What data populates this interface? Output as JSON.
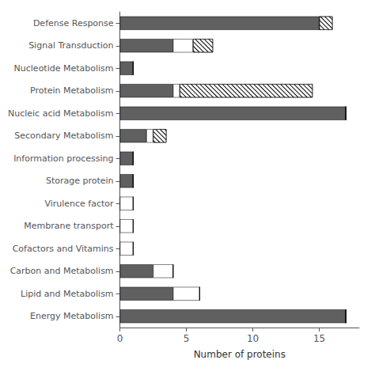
{
  "chart_data": {
    "type": "bar",
    "orientation": "horizontal",
    "stacked": true,
    "categories": [
      "Defense Response",
      "Signal Transduction",
      "Nucleotide Metabolism",
      "Protein Metabolism",
      "Nucleic acid Metabolism",
      "Secondary Metabolism",
      "Information processing",
      "Storage protein",
      "Virulence factor",
      "Membrane transport",
      "Cofactors and Vitamins",
      "Carbon and Metabolism",
      "Lipid and Metabolism",
      "Energy Metabolism"
    ],
    "series": [
      {
        "color": "#606060",
        "values": [
          15,
          4,
          1,
          4,
          17,
          2,
          1,
          1,
          0,
          0,
          0,
          2.5,
          4,
          17
        ]
      },
      {
        "color": "#ffffff",
        "values": [
          0,
          1.5,
          0,
          0.5,
          0,
          0.5,
          0,
          0,
          1,
          1,
          1,
          1.5,
          2,
          0
        ]
      },
      {
        "color": "#ffffff",
        "values": [
          1,
          1.5,
          0,
          10,
          0,
          1,
          0,
          0,
          0,
          0,
          0,
          0,
          0,
          0
        ]
      }
    ],
    "xlabel": "Number of proteins",
    "xlim": [
      0,
      18
    ],
    "xticks": [
      0,
      5,
      10,
      15
    ],
    "grid": false
  }
}
